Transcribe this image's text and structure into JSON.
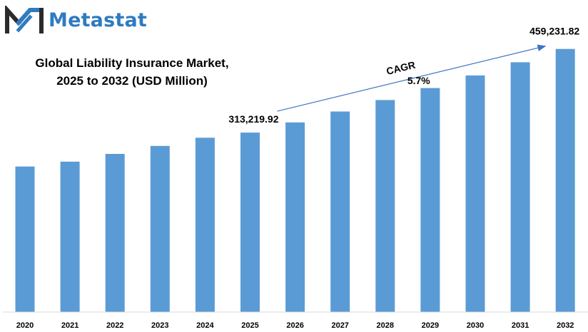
{
  "brand": {
    "name": "Metastat"
  },
  "chart_data": {
    "type": "bar",
    "title": "Global Liability Insurance Market,",
    "subtitle": "2025 to 2032 (USD Million)",
    "categories": [
      "2020",
      "2021",
      "2022",
      "2023",
      "2024",
      "2025",
      "2026",
      "2027",
      "2028",
      "2029",
      "2030",
      "2031",
      "2032"
    ],
    "values": [
      254000,
      262500,
      276000,
      290000,
      304300,
      313219.92,
      331000,
      350000,
      370000,
      391000,
      413000,
      436000,
      459231.82
    ],
    "data_labels": [
      {
        "category": "2025",
        "text": "313,219.92"
      },
      {
        "category": "2032",
        "text": "459,231.82"
      }
    ],
    "annotation": {
      "label": "CAGR",
      "value": "5.7%",
      "from": "2025",
      "to": "2032"
    },
    "bar_color": "#5b9bd5",
    "xlabel": "",
    "ylabel": "",
    "ylim": [
      0,
      475000
    ],
    "grid": false,
    "legend": "none"
  }
}
